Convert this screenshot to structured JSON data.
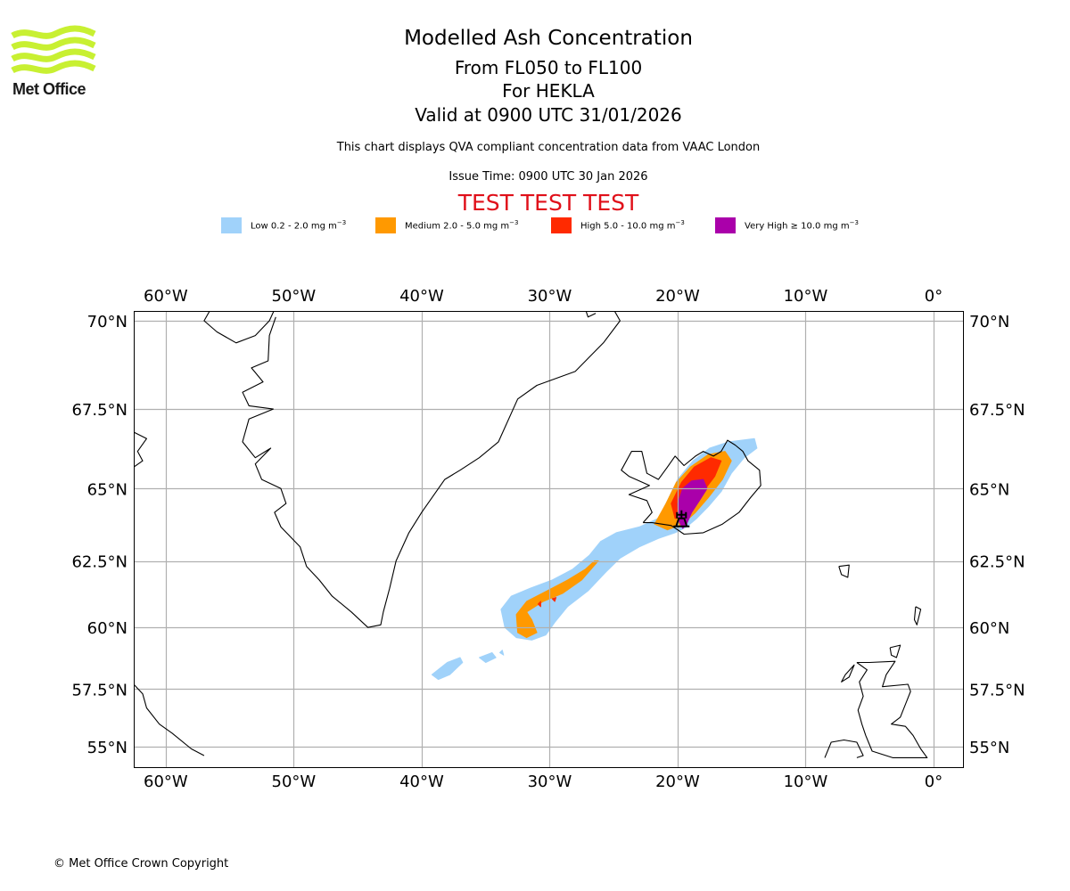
{
  "logo": {
    "text": "Met Office",
    "wave_color": "#c8f032"
  },
  "header": {
    "title": "Modelled Ash Concentration",
    "level_range": "From FL050 to FL100",
    "volcano_line": "For HEKLA",
    "valid_time": "Valid at 0900 UTC 31/01/2026",
    "subtitle": "This chart displays QVA compliant concentration data from VAAC London",
    "issue_time": "Issue Time: 0900 UTC 30 Jan 2026",
    "test_banner": "TEST TEST TEST",
    "test_color": "#e0101a"
  },
  "legend": [
    {
      "label": "Low 0.2 - 2.0 mg m",
      "unit_exp": "−3",
      "color": "#a0d2fa"
    },
    {
      "label": "Medium 2.0 - 5.0 mg m",
      "unit_exp": "−3",
      "color": "#ff9900"
    },
    {
      "label": "High 5.0 - 10.0 mg m",
      "unit_exp": "−3",
      "color": "#ff2a00"
    },
    {
      "label": "Very High ≥ 10.0 mg m",
      "unit_exp": "−3",
      "color": "#aa00aa"
    }
  ],
  "footer": {
    "copyright": "© Met Office Crown Copyright"
  },
  "chart_data": {
    "type": "map",
    "title": "Modelled Ash Concentration",
    "projection": "mercator",
    "extent": {
      "lon": [
        -62.5,
        2.3
      ],
      "lat": [
        54.5,
        70.3
      ]
    },
    "grid": true,
    "lon_ticks": [
      -60,
      -50,
      -40,
      -30,
      -20,
      -10,
      0
    ],
    "lon_tick_labels": [
      "60°W",
      "50°W",
      "40°W",
      "30°W",
      "20°W",
      "10°W",
      "0°"
    ],
    "lat_ticks": [
      70,
      67.5,
      65,
      62.5,
      60,
      57.5,
      55
    ],
    "lat_tick_labels": [
      "70°N",
      "67.5°N",
      "65°N",
      "62.5°N",
      "60°N",
      "57.5°N",
      "55°N"
    ],
    "volcano": {
      "name": "HEKLA",
      "lon": -19.7,
      "lat": 64.0
    },
    "ash_regions": [
      {
        "level": "Low",
        "color": "#a0d2fa",
        "polygons": [
          [
            [
              -21.5,
              64.0
            ],
            [
              -20.8,
              64.6
            ],
            [
              -20.0,
              65.3
            ],
            [
              -18.8,
              65.9
            ],
            [
              -17.5,
              66.3
            ],
            [
              -16.0,
              66.5
            ],
            [
              -14.0,
              66.6
            ],
            [
              -13.8,
              66.3
            ],
            [
              -14.8,
              66.0
            ],
            [
              -15.8,
              65.5
            ],
            [
              -16.6,
              64.9
            ],
            [
              -17.6,
              64.4
            ],
            [
              -18.5,
              64.0
            ],
            [
              -19.3,
              63.7
            ],
            [
              -20.2,
              63.5
            ],
            [
              -21.5,
              63.3
            ],
            [
              -23.0,
              63.0
            ],
            [
              -24.5,
              62.6
            ],
            [
              -25.6,
              62.1
            ],
            [
              -27.0,
              61.4
            ],
            [
              -28.6,
              60.8
            ],
            [
              -29.6,
              60.2
            ],
            [
              -30.3,
              59.7
            ],
            [
              -31.4,
              59.5
            ],
            [
              -32.6,
              59.6
            ],
            [
              -33.5,
              60.0
            ],
            [
              -33.8,
              60.7
            ],
            [
              -33.0,
              61.2
            ],
            [
              -31.5,
              61.5
            ],
            [
              -29.8,
              61.8
            ],
            [
              -28.2,
              62.2
            ],
            [
              -26.9,
              62.7
            ],
            [
              -26.0,
              63.2
            ],
            [
              -24.8,
              63.5
            ],
            [
              -23.0,
              63.7
            ]
          ],
          [
            [
              -39.2,
              58.1
            ],
            [
              -38.0,
              58.6
            ],
            [
              -37.0,
              58.8
            ],
            [
              -36.8,
              58.6
            ],
            [
              -37.8,
              58.1
            ],
            [
              -38.7,
              57.9
            ]
          ],
          [
            [
              -35.5,
              58.8
            ],
            [
              -34.5,
              59.0
            ],
            [
              -34.2,
              58.8
            ],
            [
              -35.0,
              58.6
            ]
          ],
          [
            [
              -33.9,
              59.0
            ],
            [
              -33.7,
              59.1
            ],
            [
              -33.6,
              58.9
            ]
          ]
        ]
      },
      {
        "level": "Medium",
        "color": "#ff9900",
        "polygons": [
          [
            [
              -21.8,
              63.8
            ],
            [
              -20.9,
              64.5
            ],
            [
              -20.1,
              65.2
            ],
            [
              -19.0,
              65.7
            ],
            [
              -17.6,
              66.1
            ],
            [
              -16.3,
              66.2
            ],
            [
              -15.8,
              65.9
            ],
            [
              -16.5,
              65.3
            ],
            [
              -17.6,
              64.7
            ],
            [
              -18.6,
              64.2
            ],
            [
              -19.6,
              63.8
            ],
            [
              -20.8,
              63.6
            ]
          ],
          [
            [
              -26.2,
              62.5
            ],
            [
              -27.5,
              61.8
            ],
            [
              -29.0,
              61.3
            ],
            [
              -30.5,
              61.0
            ],
            [
              -31.8,
              60.6
            ],
            [
              -31.4,
              60.3
            ],
            [
              -31.0,
              59.8
            ],
            [
              -31.8,
              59.6
            ],
            [
              -32.5,
              59.8
            ],
            [
              -32.6,
              60.5
            ],
            [
              -31.8,
              61.0
            ],
            [
              -30.2,
              61.4
            ],
            [
              -28.6,
              61.8
            ],
            [
              -27.2,
              62.2
            ],
            [
              -26.5,
              62.5
            ]
          ]
        ]
      },
      {
        "level": "High",
        "color": "#ff2a00",
        "polygons": [
          [
            [
              -20.5,
              64.5
            ],
            [
              -19.7,
              65.2
            ],
            [
              -18.7,
              65.7
            ],
            [
              -17.4,
              66.0
            ],
            [
              -16.6,
              65.9
            ],
            [
              -17.1,
              65.4
            ],
            [
              -18.0,
              64.9
            ],
            [
              -18.9,
              64.4
            ],
            [
              -19.6,
              64.0
            ],
            [
              -20.2,
              64.0
            ]
          ],
          [
            [
              -30.9,
              60.9
            ],
            [
              -30.7,
              61.0
            ],
            [
              -30.7,
              60.8
            ]
          ],
          [
            [
              -29.8,
              61.1
            ],
            [
              -29.5,
              61.15
            ],
            [
              -29.6,
              61.0
            ]
          ]
        ]
      },
      {
        "level": "Very High",
        "color": "#aa00aa",
        "polygons": [
          [
            [
              -20.0,
              64.5
            ],
            [
              -19.6,
              65.0
            ],
            [
              -18.9,
              65.25
            ],
            [
              -18.0,
              65.3
            ],
            [
              -17.7,
              65.0
            ],
            [
              -18.3,
              64.6
            ],
            [
              -18.9,
              64.2
            ],
            [
              -19.3,
              63.8
            ],
            [
              -19.6,
              63.65
            ],
            [
              -19.9,
              63.9
            ]
          ]
        ]
      }
    ],
    "coastlines": [
      {
        "name": "greenland",
        "points": [
          [
            -56.5,
            70.3
          ],
          [
            -57.0,
            70.0
          ],
          [
            -56.0,
            69.7
          ],
          [
            -54.5,
            69.4
          ],
          [
            -53.0,
            69.6
          ],
          [
            -51.9,
            70.0
          ],
          [
            -51.5,
            70.3
          ]
        ]
      },
      {
        "name": "greenland-west",
        "points": [
          [
            -51.4,
            70.1
          ],
          [
            -51.9,
            69.6
          ],
          [
            -52.0,
            68.9
          ],
          [
            -53.3,
            68.7
          ],
          [
            -52.4,
            68.3
          ],
          [
            -54.0,
            68.0
          ],
          [
            -53.5,
            67.6
          ],
          [
            -51.6,
            67.5
          ],
          [
            -53.5,
            67.2
          ],
          [
            -54.0,
            66.5
          ],
          [
            -53.0,
            66.0
          ],
          [
            -51.8,
            66.3
          ],
          [
            -53.0,
            65.8
          ],
          [
            -52.5,
            65.3
          ],
          [
            -51.0,
            65.0
          ],
          [
            -50.6,
            64.5
          ],
          [
            -51.5,
            64.2
          ],
          [
            -51.0,
            63.7
          ],
          [
            -49.5,
            63.0
          ],
          [
            -49.0,
            62.3
          ],
          [
            -48.0,
            61.8
          ],
          [
            -47.0,
            61.2
          ],
          [
            -45.5,
            60.6
          ],
          [
            -44.2,
            60.0
          ],
          [
            -43.2,
            60.1
          ],
          [
            -43.0,
            60.6
          ],
          [
            -42.5,
            61.5
          ],
          [
            -42.0,
            62.5
          ],
          [
            -41.0,
            63.5
          ],
          [
            -40.0,
            64.2
          ],
          [
            -38.2,
            65.3
          ],
          [
            -37.0,
            65.6
          ],
          [
            -35.5,
            66.0
          ],
          [
            -34.0,
            66.5
          ],
          [
            -32.5,
            67.8
          ],
          [
            -31.0,
            68.2
          ],
          [
            -28.0,
            68.6
          ],
          [
            -25.8,
            69.4
          ],
          [
            -24.5,
            70.0
          ],
          [
            -25.0,
            70.3
          ]
        ]
      },
      {
        "name": "greenland-north-fragment",
        "points": [
          [
            -27.2,
            70.3
          ],
          [
            -27.0,
            70.1
          ],
          [
            -26.4,
            70.2
          ]
        ]
      },
      {
        "name": "iceland",
        "points": [
          [
            -22.7,
            63.85
          ],
          [
            -22.0,
            63.85
          ],
          [
            -20.5,
            63.75
          ],
          [
            -19.5,
            63.45
          ],
          [
            -18.0,
            63.5
          ],
          [
            -16.5,
            63.8
          ],
          [
            -15.2,
            64.2
          ],
          [
            -14.3,
            64.7
          ],
          [
            -13.5,
            65.1
          ],
          [
            -13.6,
            65.6
          ],
          [
            -14.5,
            65.9
          ],
          [
            -14.9,
            66.2
          ],
          [
            -15.5,
            66.4
          ],
          [
            -16.1,
            66.55
          ],
          [
            -16.6,
            66.2
          ],
          [
            -17.2,
            66.05
          ],
          [
            -18.0,
            66.2
          ],
          [
            -18.6,
            66.05
          ],
          [
            -19.5,
            65.75
          ],
          [
            -20.2,
            66.05
          ],
          [
            -20.8,
            65.7
          ],
          [
            -21.5,
            65.3
          ],
          [
            -22.4,
            65.5
          ],
          [
            -22.8,
            66.2
          ],
          [
            -23.6,
            66.2
          ],
          [
            -24.4,
            65.6
          ],
          [
            -23.8,
            65.4
          ],
          [
            -22.2,
            65.1
          ],
          [
            -23.8,
            64.8
          ],
          [
            -22.4,
            64.6
          ],
          [
            -22.0,
            64.2
          ],
          [
            -22.7,
            63.85
          ]
        ]
      },
      {
        "name": "faroe",
        "points": [
          [
            -7.4,
            62.3
          ],
          [
            -6.6,
            62.35
          ],
          [
            -6.7,
            61.9
          ],
          [
            -7.2,
            62.0
          ],
          [
            -7.4,
            62.3
          ]
        ]
      },
      {
        "name": "shetland",
        "points": [
          [
            -1.4,
            60.8
          ],
          [
            -1.0,
            60.7
          ],
          [
            -1.3,
            60.1
          ],
          [
            -1.5,
            60.3
          ],
          [
            -1.4,
            60.8
          ]
        ]
      },
      {
        "name": "orkney",
        "points": [
          [
            -3.4,
            59.2
          ],
          [
            -2.6,
            59.3
          ],
          [
            -2.9,
            58.8
          ],
          [
            -3.3,
            58.9
          ],
          [
            -3.4,
            59.2
          ]
        ]
      },
      {
        "name": "scotland",
        "points": [
          [
            -6.0,
            58.6
          ],
          [
            -5.0,
            58.6
          ],
          [
            -3.0,
            58.65
          ],
          [
            -3.7,
            58.1
          ],
          [
            -4.0,
            57.6
          ],
          [
            -2.0,
            57.7
          ],
          [
            -1.8,
            57.4
          ],
          [
            -2.6,
            56.3
          ],
          [
            -3.3,
            56.0
          ],
          [
            -2.2,
            55.9
          ],
          [
            -1.6,
            55.5
          ],
          [
            -1.0,
            54.9
          ],
          [
            -0.5,
            54.5
          ],
          [
            -3.2,
            54.5
          ],
          [
            -4.8,
            54.8
          ],
          [
            -5.3,
            55.5
          ],
          [
            -5.6,
            56.0
          ],
          [
            -5.9,
            56.6
          ],
          [
            -5.5,
            57.2
          ],
          [
            -5.8,
            57.8
          ],
          [
            -5.2,
            58.3
          ],
          [
            -6.0,
            58.6
          ]
        ]
      },
      {
        "name": "lewis",
        "points": [
          [
            -6.9,
            58.1
          ],
          [
            -6.2,
            58.5
          ],
          [
            -6.6,
            58.0
          ],
          [
            -7.2,
            57.8
          ],
          [
            -6.9,
            58.1
          ]
        ]
      },
      {
        "name": "ireland-north",
        "points": [
          [
            -8.5,
            54.5
          ],
          [
            -8.0,
            55.2
          ],
          [
            -7.0,
            55.3
          ],
          [
            -6.0,
            55.2
          ],
          [
            -5.5,
            54.6
          ],
          [
            -6.0,
            54.5
          ]
        ]
      },
      {
        "name": "labrador",
        "points": [
          [
            -62.5,
            57.7
          ],
          [
            -61.8,
            57.3
          ],
          [
            -61.5,
            56.7
          ],
          [
            -60.5,
            56.0
          ],
          [
            -59.5,
            55.6
          ],
          [
            -58.0,
            54.9
          ],
          [
            -57.0,
            54.6
          ]
        ]
      },
      {
        "name": "baffin",
        "points": [
          [
            -62.5,
            66.8
          ],
          [
            -61.5,
            66.6
          ],
          [
            -62.2,
            66.2
          ],
          [
            -61.8,
            65.9
          ],
          [
            -62.5,
            65.7
          ]
        ]
      }
    ]
  }
}
